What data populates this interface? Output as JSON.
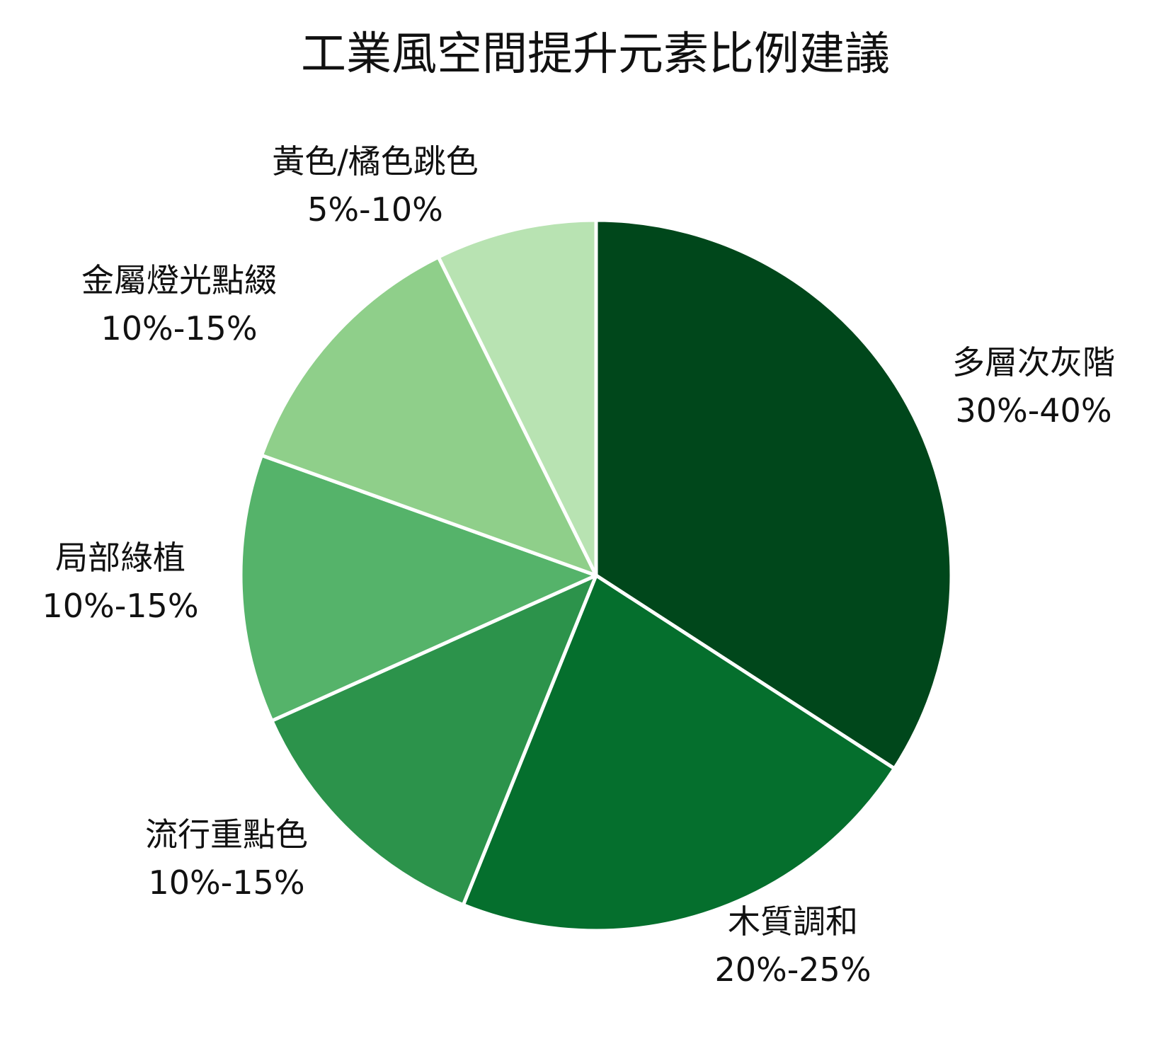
{
  "chart_data": {
    "type": "pie",
    "title": "工業風空間提升元素比例建議",
    "slices": [
      {
        "label": "多層次灰階",
        "range": "30%-40%",
        "value": 35,
        "color": "#00471b"
      },
      {
        "label": "木質調和",
        "range": "20%-25%",
        "value": 22.5,
        "color": "#056f2d"
      },
      {
        "label": "流行重點色",
        "range": "10%-15%",
        "value": 12.5,
        "color": "#2c934b"
      },
      {
        "label": "局部綠植",
        "range": "10%-15%",
        "value": 12.5,
        "color": "#55b36a"
      },
      {
        "label": "金屬燈光點綴",
        "range": "10%-15%",
        "value": 12.5,
        "color": "#8fcf8a"
      },
      {
        "label": "黃色/橘色跳色",
        "range": "5%-10%",
        "value": 7.5,
        "color": "#b8e3b2"
      }
    ],
    "start_angle": "12 o'clock",
    "direction": "clockwise",
    "slice_border_color": "#ffffff",
    "legend": "none"
  }
}
